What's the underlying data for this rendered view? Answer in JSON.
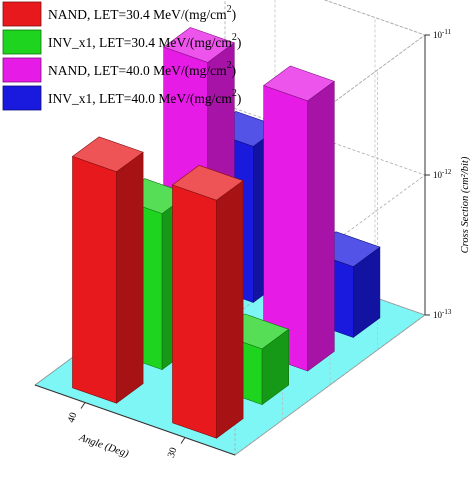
{
  "chart_data": {
    "type": "bar",
    "subtype": "3d-bar",
    "title": "",
    "categories": [
      "40",
      "30"
    ],
    "xlabel": "Angle (Deg)",
    "zlabel": "Cross Section (cm²/bit)",
    "scale": "log",
    "zlim": [
      1e-13,
      1e-11
    ],
    "z_ticks": [
      {
        "value": 1e-11,
        "label_base": "10",
        "label_exp": "-11"
      },
      {
        "value": 1e-12,
        "label_base": "10",
        "label_exp": "-12"
      },
      {
        "value": 1e-13,
        "label_base": "10",
        "label_exp": "-13"
      }
    ],
    "grid": true,
    "legend_position": "top-left",
    "series": [
      {
        "name": "NAND,  LET=30.4 MeV/(mg/cm²)",
        "name_main": "NAND,  LET=30.4 MeV/(mg/cm",
        "name_sup": "2",
        "name_tail": ")",
        "color": "#e8191d",
        "values": [
          4.5e-12,
          5e-12
        ]
      },
      {
        "name": "INV_x1, LET=30.4 MeV/(mg/cm²)",
        "name_main": "INV_x1, LET=30.4 MeV/(mg/cm",
        "name_sup": "2",
        "name_tail": ")",
        "color": "#1ed41e",
        "values": [
          1.3e-12,
          2.5e-13
        ]
      },
      {
        "name": "NAND,  LET=40.0 MeV/(mg/cm²)",
        "name_main": "NAND,  LET=40.0 MeV/(mg/cm",
        "name_sup": "2",
        "name_tail": ")",
        "color": "#e61be6",
        "values": [
          9e-12,
          8.5e-12
        ]
      },
      {
        "name": "INV_x1, LET=40.0 MeV/(mg/cm²)",
        "name_main": "INV_x1, LET=40.0 MeV/(mg/cm",
        "name_sup": "2",
        "name_tail": ")",
        "color": "#1a1adf",
        "values": [
          1.3e-12,
          3.2e-13
        ]
      }
    ]
  }
}
